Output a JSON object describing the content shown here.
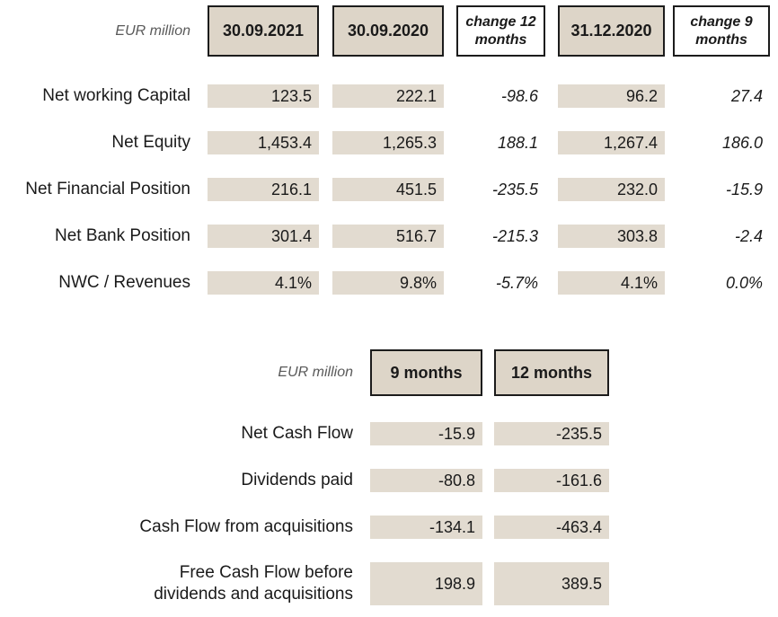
{
  "colors": {
    "background": "#ffffff",
    "header_fill": "#ddd5c8",
    "cell_fill": "#e2dbd0",
    "border": "#1c1c1c",
    "text": "#1a1a1a",
    "muted_text": "#5a5a5a"
  },
  "table1": {
    "unit_label": "EUR million",
    "columns": [
      {
        "label": "30.09.2021",
        "style": "solid"
      },
      {
        "label": "30.09.2020",
        "style": "solid"
      },
      {
        "label": "change 12 months",
        "style": "change"
      },
      {
        "label": "31.12.2020",
        "style": "solid"
      },
      {
        "label": "change 9 months",
        "style": "change"
      }
    ],
    "rows": [
      {
        "label": "Net working Capital",
        "values": [
          "123.5",
          "222.1",
          "-98.6",
          "96.2",
          "27.4"
        ]
      },
      {
        "label": "Net Equity",
        "values": [
          "1,453.4",
          "1,265.3",
          "188.1",
          "1,267.4",
          "186.0"
        ]
      },
      {
        "label": "Net Financial Position",
        "values": [
          "216.1",
          "451.5",
          "-235.5",
          "232.0",
          "-15.9"
        ]
      },
      {
        "label": "Net Bank Position",
        "values": [
          "301.4",
          "516.7",
          "-215.3",
          "303.8",
          "-2.4"
        ]
      },
      {
        "label": "NWC / Revenues",
        "values": [
          "4.1%",
          "9.8%",
          "-5.7%",
          "4.1%",
          "0.0%"
        ]
      }
    ]
  },
  "table2": {
    "unit_label": "EUR million",
    "columns": [
      {
        "label": "9 months"
      },
      {
        "label": "12 months"
      }
    ],
    "rows": [
      {
        "label": "Net Cash Flow",
        "values": [
          "-15.9",
          "-235.5"
        ]
      },
      {
        "label": "Dividends paid",
        "values": [
          "-80.8",
          "-161.6"
        ]
      },
      {
        "label": "Cash Flow from acquisitions",
        "values": [
          "-134.1",
          "-463.4"
        ]
      },
      {
        "label": "Free Cash Flow before dividends and acquisitions",
        "values": [
          "198.9",
          "389.5"
        ]
      }
    ]
  }
}
